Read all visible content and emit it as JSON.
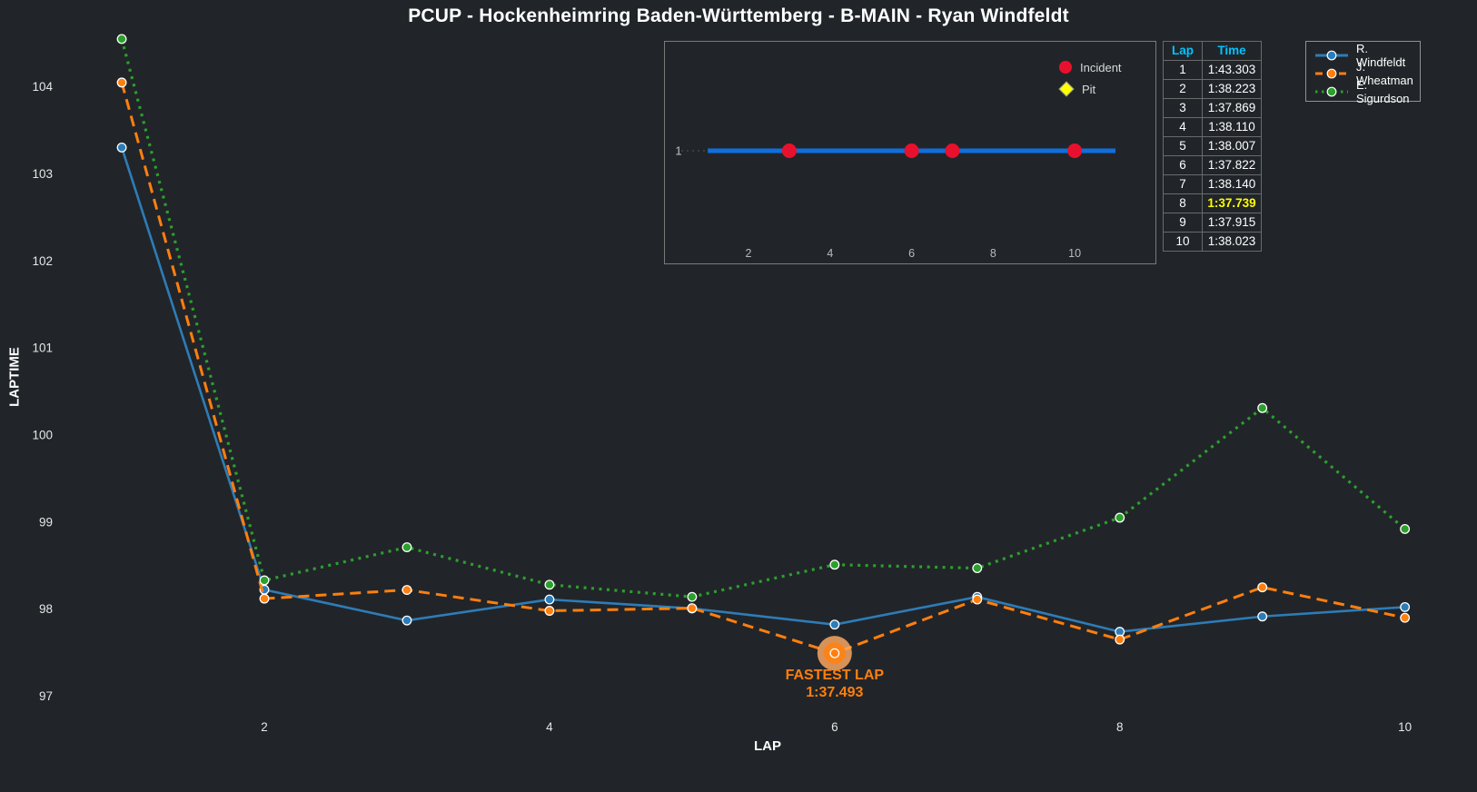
{
  "title": "PCUP - Hockenheimring Baden-Württemberg - B-MAIN - Ryan Windfeldt",
  "colors": {
    "background": "#212529",
    "tick_text": "#e6e6e6",
    "inset_tick_text": "#b9b9b9",
    "inset_row_label_text": "#c0c0c0",
    "windfeldt_blue": "#2e7cb7",
    "wheatman_orange": "#ff7f0e",
    "sigurdson_green": "#2ca02c",
    "incident_red": "#e8112d",
    "pit_yellow": "#ffff00",
    "inset_line_blue": "#0f6fe0",
    "table_header_cyan": "#00c3ff",
    "fastest_highlight_yellow": "#ffff00",
    "annotation_orange": "#ff7f0e"
  },
  "chart_data": [
    {
      "type": "line",
      "xlabel": "LAP",
      "ylabel": "LAPTIME",
      "x": [
        1,
        2,
        3,
        4,
        5,
        6,
        7,
        8,
        9,
        10
      ],
      "xticks": [
        2,
        4,
        6,
        8,
        10
      ],
      "yticks": [
        97,
        98,
        99,
        100,
        101,
        102,
        103,
        104
      ],
      "xlim": [
        0.56,
        10.34
      ],
      "ylim": [
        96.9,
        104.56
      ],
      "grid": false,
      "legend_position": "top-right",
      "series": [
        {
          "name": "R. Windfeldt",
          "style": "solid",
          "color": "#2e7cb7",
          "values": [
            103.303,
            98.223,
            97.869,
            98.11,
            98.007,
            97.822,
            98.14,
            97.739,
            97.915,
            98.023
          ]
        },
        {
          "name": "J. Wheatman",
          "style": "dashed",
          "color": "#ff7f0e",
          "values": [
            104.05,
            98.12,
            98.22,
            97.98,
            98.01,
            97.493,
            98.11,
            97.65,
            98.25,
            97.9
          ]
        },
        {
          "name": "E. Sigurdson",
          "style": "dotted",
          "color": "#2ca02c",
          "values": [
            104.55,
            98.33,
            98.71,
            98.28,
            98.14,
            98.51,
            98.47,
            99.05,
            100.31,
            98.92
          ]
        }
      ],
      "annotation": {
        "label": "FASTEST LAP",
        "value": "1:37.493",
        "series": "J. Wheatman",
        "lap": 6,
        "seconds": 97.493
      }
    },
    {
      "type": "timeline",
      "row_label": "1",
      "xticks": [
        2,
        4,
        6,
        8,
        10
      ],
      "xlim": [
        -0.05,
        11.98
      ],
      "line_span": [
        1,
        11
      ],
      "incident_laps": [
        3,
        6,
        7,
        10
      ],
      "pit_laps": [],
      "legend": [
        {
          "label": "Incident",
          "marker": "circle",
          "color": "#e8112d"
        },
        {
          "label": "Pit",
          "marker": "diamond",
          "color": "#ffff00"
        }
      ]
    }
  ],
  "lap_table": {
    "headers": [
      "Lap",
      "Time"
    ],
    "rows": [
      {
        "lap": "1",
        "time": "1:43.303"
      },
      {
        "lap": "2",
        "time": "1:38.223"
      },
      {
        "lap": "3",
        "time": "1:37.869"
      },
      {
        "lap": "4",
        "time": "1:38.110"
      },
      {
        "lap": "5",
        "time": "1:38.007"
      },
      {
        "lap": "6",
        "time": "1:37.822"
      },
      {
        "lap": "7",
        "time": "1:38.140"
      },
      {
        "lap": "8",
        "time": "1:37.739",
        "fastest": true
      },
      {
        "lap": "9",
        "time": "1:37.915"
      },
      {
        "lap": "10",
        "time": "1:38.023"
      }
    ]
  }
}
